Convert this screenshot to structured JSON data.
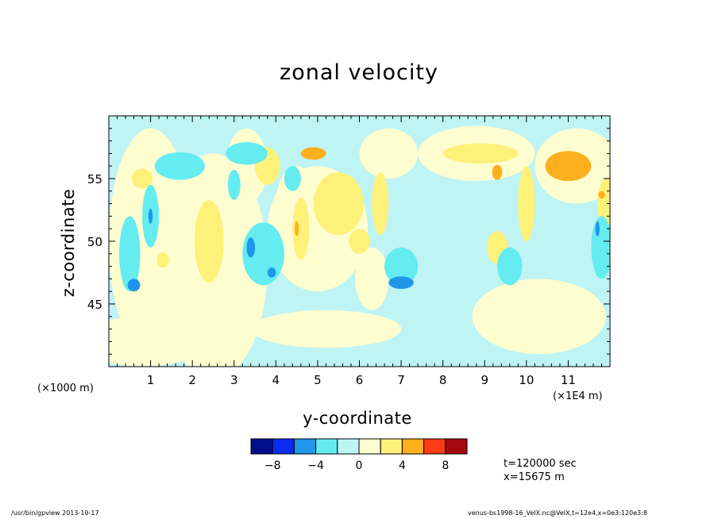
{
  "chart_data": {
    "type": "heatmap",
    "title": "zonal velocity",
    "xlabel": "y-coordinate",
    "ylabel": "z-coordinate",
    "x_unit_left": "(×1000 m)",
    "x_unit_right": "(×1E4 m)",
    "xlim": [
      0,
      12
    ],
    "ylim": [
      40,
      60
    ],
    "x_ticks": [
      1,
      2,
      3,
      4,
      5,
      6,
      7,
      8,
      9,
      10,
      11
    ],
    "y_ticks": [
      45,
      50,
      55
    ],
    "colorbar": {
      "levels": [
        -10,
        -8,
        -6,
        -4,
        -2,
        0,
        2,
        4,
        6,
        8,
        10
      ],
      "tick_values": [
        -8,
        -4,
        0,
        4,
        8
      ],
      "tick_labels": [
        "−8",
        "−4",
        "0",
        "4",
        "8"
      ],
      "colors": [
        "#000e8c",
        "#0a2cf0",
        "#1f96ea",
        "#64ecf0",
        "#bff4f4",
        "#fefdd0",
        "#fef17a",
        "#feaf1e",
        "#ff3c14",
        "#a5070e"
      ]
    },
    "contour_regions": [
      {
        "level": "0 to 2",
        "y": 1.0,
        "z": 50,
        "ry": 1.0,
        "rz": 9
      },
      {
        "level": "0 to 2",
        "y": 2.5,
        "z": 48,
        "ry": 1.3,
        "rz": 9
      },
      {
        "level": "0 to 2",
        "y": 5.0,
        "z": 51,
        "ry": 1.2,
        "rz": 5
      },
      {
        "level": "0 to 2",
        "y": 8.8,
        "z": 57,
        "ry": 1.4,
        "rz": 2.2
      },
      {
        "level": "0 to 2",
        "y": 10.3,
        "z": 44,
        "ry": 1.6,
        "rz": 3
      },
      {
        "level": "0 to 2",
        "y": 0.8,
        "z": 42,
        "ry": 1.5,
        "rz": 2
      },
      {
        "level": "0 to 2",
        "y": 5.2,
        "z": 43,
        "ry": 1.8,
        "rz": 1.5
      },
      {
        "level": "0 to 2",
        "y": 6.3,
        "z": 47,
        "ry": 0.4,
        "rz": 2.5
      },
      {
        "level": "0 to 2",
        "y": 11.2,
        "z": 56,
        "ry": 1.0,
        "rz": 3
      },
      {
        "level": "0 to 2",
        "y": 6.7,
        "z": 57,
        "ry": 0.7,
        "rz": 2
      },
      {
        "level": "0 to 2",
        "y": 3.3,
        "z": 56,
        "ry": 0.5,
        "rz": 3
      },
      {
        "level": "0 to 2",
        "y": 4.5,
        "z": 53,
        "ry": 0.5,
        "rz": 3
      },
      {
        "level": "2 to 4",
        "y": 2.4,
        "z": 50,
        "ry": 0.35,
        "rz": 3.3
      },
      {
        "level": "2 to 4",
        "y": 0.8,
        "z": 55,
        "ry": 0.25,
        "rz": 0.8
      },
      {
        "level": "2 to 4",
        "y": 1.3,
        "z": 48.5,
        "ry": 0.15,
        "rz": 0.6
      },
      {
        "level": "2 to 4",
        "y": 5.5,
        "z": 53,
        "ry": 0.6,
        "rz": 2.5
      },
      {
        "level": "2 to 4",
        "y": 4.6,
        "z": 51,
        "ry": 0.2,
        "rz": 2.5
      },
      {
        "level": "2 to 4",
        "y": 8.9,
        "z": 57,
        "ry": 0.9,
        "rz": 0.8
      },
      {
        "level": "2 to 4",
        "y": 6.0,
        "z": 50,
        "ry": 0.25,
        "rz": 1.0
      },
      {
        "level": "2 to 4",
        "y": 9.3,
        "z": 49.5,
        "ry": 0.25,
        "rz": 1.3
      },
      {
        "level": "2 to 4",
        "y": 10.0,
        "z": 53,
        "ry": 0.2,
        "rz": 3
      },
      {
        "level": "2 to 4",
        "y": 11.9,
        "z": 53,
        "ry": 0.2,
        "rz": 2
      },
      {
        "level": "2 to 4",
        "y": 3.8,
        "z": 56,
        "ry": 0.3,
        "rz": 1.5
      },
      {
        "level": "2 to 4",
        "y": 6.5,
        "z": 53,
        "ry": 0.2,
        "rz": 2.5
      },
      {
        "level": "4 to 6",
        "y": 4.9,
        "z": 57,
        "ry": 0.3,
        "rz": 0.5
      },
      {
        "level": "4 to 6",
        "y": 11.0,
        "z": 56,
        "ry": 0.55,
        "rz": 1.2
      },
      {
        "level": "4 to 6",
        "y": 9.3,
        "z": 55.5,
        "ry": 0.12,
        "rz": 0.6
      },
      {
        "level": "4 to 6",
        "y": 4.5,
        "z": 51,
        "ry": 0.05,
        "rz": 0.6
      },
      {
        "level": "4 to 6",
        "y": 11.8,
        "z": 53.7,
        "ry": 0.08,
        "rz": 0.3
      },
      {
        "level": "-4 to -2",
        "y": 1.7,
        "z": 56,
        "ry": 0.6,
        "rz": 1.1
      },
      {
        "level": "-4 to -2",
        "y": 3.3,
        "z": 57,
        "ry": 0.5,
        "rz": 0.9
      },
      {
        "level": "-4 to -2",
        "y": 0.5,
        "z": 49,
        "ry": 0.25,
        "rz": 3
      },
      {
        "level": "-4 to -2",
        "y": 1.0,
        "z": 52,
        "ry": 0.2,
        "rz": 2.5
      },
      {
        "level": "-4 to -2",
        "y": 3.0,
        "z": 54.5,
        "ry": 0.15,
        "rz": 1.2
      },
      {
        "level": "-4 to -2",
        "y": 3.7,
        "z": 49,
        "ry": 0.5,
        "rz": 2.5
      },
      {
        "level": "-4 to -2",
        "y": 7.0,
        "z": 48,
        "ry": 0.4,
        "rz": 1.5
      },
      {
        "level": "-4 to -2",
        "y": 11.8,
        "z": 49.5,
        "ry": 0.25,
        "rz": 2.5
      },
      {
        "level": "-4 to -2",
        "y": 9.6,
        "z": 48,
        "ry": 0.3,
        "rz": 1.5
      },
      {
        "level": "-4 to -2",
        "y": 4.4,
        "z": 55,
        "ry": 0.2,
        "rz": 1.0
      },
      {
        "level": "-6 to -4",
        "y": 0.6,
        "z": 46.5,
        "ry": 0.15,
        "rz": 0.5
      },
      {
        "level": "-6 to -4",
        "y": 1.0,
        "z": 52,
        "ry": 0.05,
        "rz": 0.6
      },
      {
        "level": "-6 to -4",
        "y": 3.4,
        "z": 49.5,
        "ry": 0.1,
        "rz": 0.8
      },
      {
        "level": "-6 to -4",
        "y": 3.9,
        "z": 47.5,
        "ry": 0.1,
        "rz": 0.4
      },
      {
        "level": "-6 to -4",
        "y": 7.0,
        "z": 46.7,
        "ry": 0.3,
        "rz": 0.5
      },
      {
        "level": "-6 to -4",
        "y": 11.7,
        "z": 51,
        "ry": 0.05,
        "rz": 0.6
      }
    ],
    "grid": false,
    "legend": "bottom"
  },
  "meta": {
    "time_label": "t=120000 sec",
    "position_label": "x=15675 m",
    "footer_left": "/usr/bin/gpview  2013-10-17",
    "footer_right": "venus-bs1998-16_VelX.nc@VelX,t=12e4,x=0e3:120e3:8"
  }
}
